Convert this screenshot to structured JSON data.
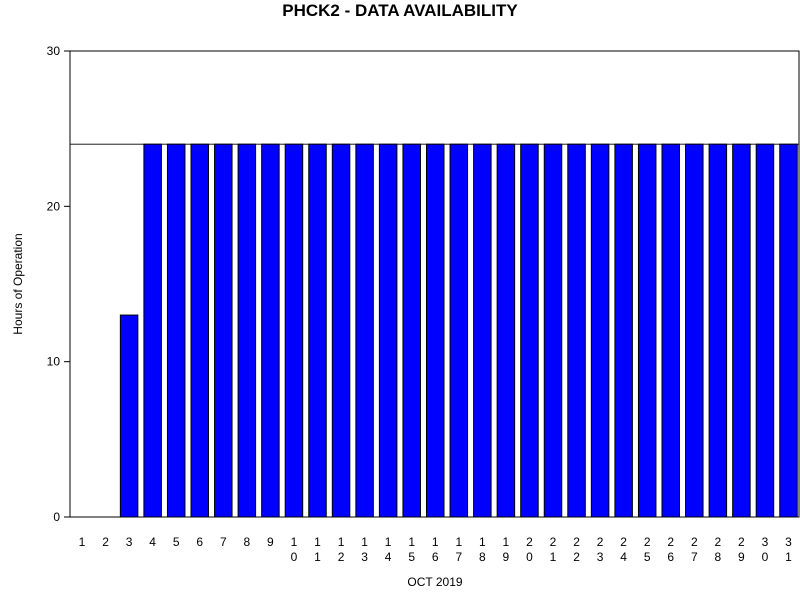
{
  "chart_data": {
    "type": "bar",
    "title": "PHCK2 - DATA AVAILABILITY",
    "xlabel": "OCT 2019",
    "ylabel": "Hours of Operation",
    "ylim": [
      0,
      30
    ],
    "yticks": [
      0,
      10,
      20,
      30
    ],
    "reference_line": 24,
    "bar_color": "#0000ff",
    "categories": [
      "1",
      "2",
      "3",
      "4",
      "5",
      "6",
      "7",
      "8",
      "9",
      "10",
      "11",
      "12",
      "13",
      "14",
      "15",
      "16",
      "17",
      "18",
      "19",
      "20",
      "21",
      "22",
      "23",
      "24",
      "25",
      "26",
      "27",
      "28",
      "29",
      "30",
      "31"
    ],
    "values": [
      0,
      0,
      13,
      24,
      24,
      24,
      24,
      24,
      24,
      24,
      24,
      24,
      24,
      24,
      24,
      24,
      24,
      24,
      24,
      24,
      24,
      24,
      24,
      24,
      24,
      24,
      24,
      24,
      24,
      24,
      24
    ],
    "grid": false,
    "legend": "none"
  }
}
